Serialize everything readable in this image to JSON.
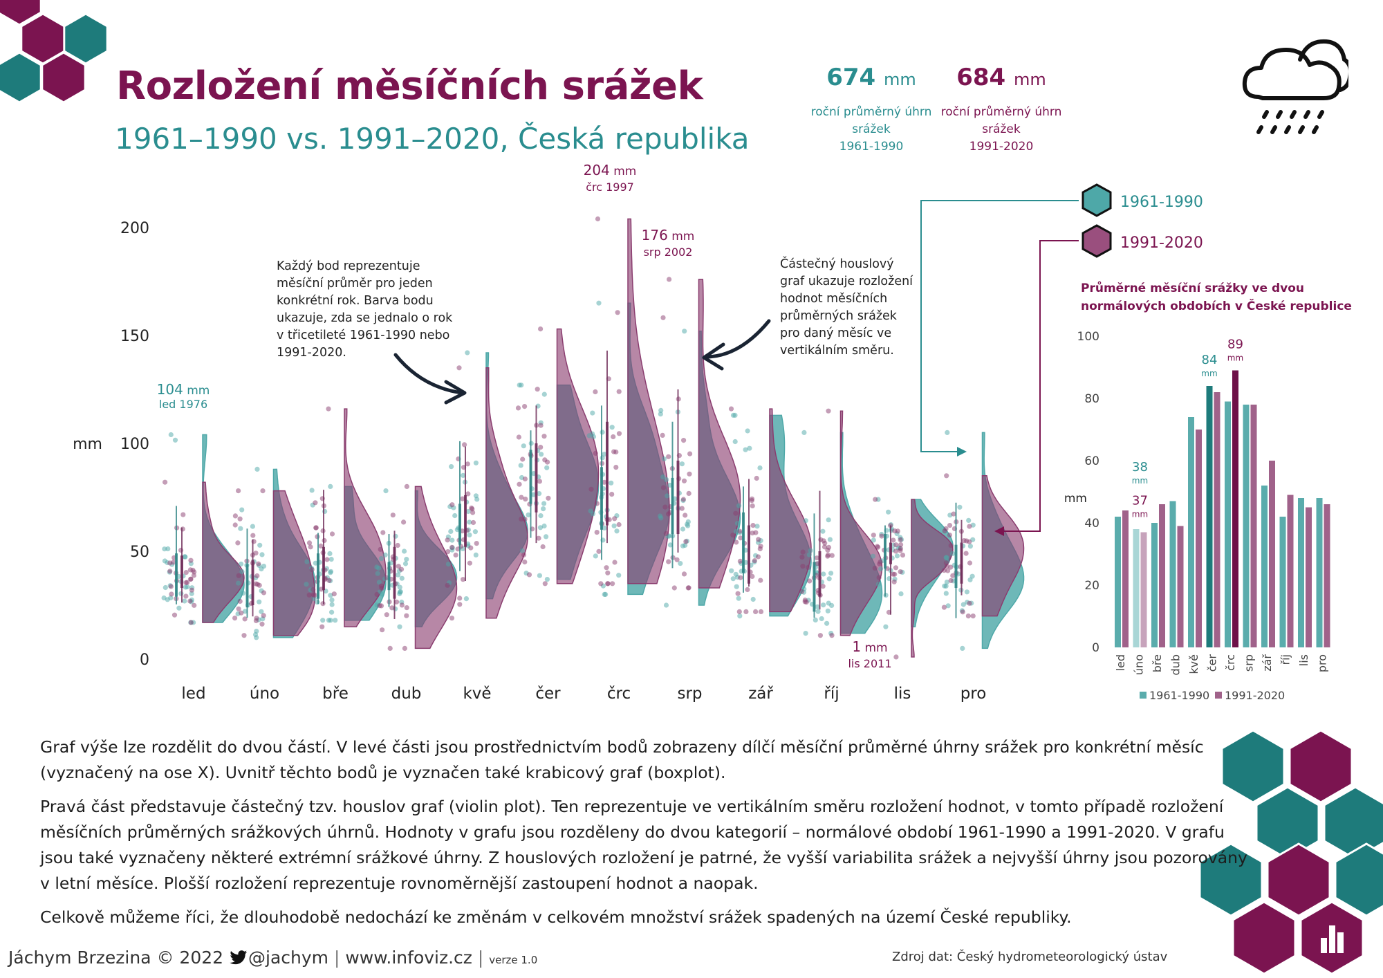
{
  "header": {
    "title": "Rozložení měsíčních srážek",
    "subtitle": "1961–1990 vs. 1991–2020, Česká republika"
  },
  "stats": [
    {
      "value": "674",
      "unit": "mm",
      "label": [
        "roční průměrný úhrn",
        "srážek",
        "1961-1990"
      ],
      "color": "#2a8d8f"
    },
    {
      "value": "684",
      "unit": "mm",
      "label": [
        "roční průměrný úhrn",
        "srážek",
        "1991-2020"
      ],
      "color": "#7b1450"
    }
  ],
  "legend": [
    {
      "label": "1961-1990",
      "color": "#4ea8a8"
    },
    {
      "label": "1991-2020",
      "color": "#9a4f7e"
    }
  ],
  "annotations": {
    "points_note": [
      "Každý bod reprezentuje",
      "měsíční průměr pro jeden",
      "konkrétní rok. Barva bodu",
      "ukazuje, zda se jednalo o rok",
      "v třicetileté 1961-1990 nebo",
      "1991-2020."
    ],
    "violin_note": [
      "Částečný houslový",
      "graf ukazuje rozložení",
      "hodnot měsíčních",
      "průměrných srážek",
      "pro daný měsíc ve",
      "vertikálním směru."
    ],
    "extremes": [
      {
        "value": "104",
        "unit": "mm",
        "label": "led 1976",
        "color": "#2a8d8f"
      },
      {
        "value": "204",
        "unit": "mm",
        "label": "črc 1997",
        "color": "#7b1450"
      },
      {
        "value": "176",
        "unit": "mm",
        "label": "srp 2002",
        "color": "#7b1450"
      },
      {
        "value": "1",
        "unit": "mm",
        "label": "lis 2011",
        "color": "#7b1450"
      }
    ]
  },
  "colors": {
    "teal": "#4ea8a8",
    "plum": "#8a3d6f",
    "dark_plum": "#7b1450",
    "dark_teal": "#1e7b7b"
  },
  "chart_data": [
    {
      "type": "violin",
      "ylabel": "mm",
      "ylim": [
        0,
        210
      ],
      "yticks": [
        0,
        50,
        100,
        150,
        200
      ],
      "categories": [
        "led",
        "úno",
        "bře",
        "dub",
        "kvě",
        "čer",
        "črc",
        "srp",
        "zář",
        "říj",
        "lis",
        "pro"
      ],
      "series": [
        {
          "name": "1961-1990",
          "median": [
            38,
            33,
            37,
            38,
            60,
            85,
            70,
            68,
            47,
            30,
            50,
            40
          ],
          "q1": [
            29,
            24,
            28,
            32,
            53,
            72,
            60,
            58,
            40,
            22,
            42,
            33
          ],
          "q3": [
            49,
            44,
            49,
            45,
            72,
            97,
            89,
            84,
            68,
            45,
            58,
            53
          ],
          "min": [
            17,
            10,
            18,
            15,
            28,
            37,
            30,
            25,
            20,
            12,
            15,
            5
          ],
          "max": [
            104,
            88,
            80,
            78,
            142,
            127,
            165,
            152,
            113,
            105,
            74,
            105
          ]
        },
        {
          "name": "1991-2020",
          "median": [
            40,
            33,
            41,
            39,
            62,
            82,
            82,
            74,
            51,
            41,
            50,
            44
          ],
          "q1": [
            33,
            25,
            32,
            28,
            52,
            68,
            62,
            58,
            35,
            29,
            44,
            35
          ],
          "q3": [
            48,
            46,
            52,
            52,
            76,
            100,
            110,
            92,
            62,
            50,
            54,
            54
          ],
          "min": [
            17,
            11,
            15,
            5,
            19,
            35,
            35,
            33,
            22,
            11,
            1,
            20
          ],
          "max": [
            82,
            78,
            116,
            80,
            135,
            153,
            204,
            176,
            116,
            115,
            74,
            85
          ]
        }
      ]
    },
    {
      "type": "bar",
      "title": "Průměrné měsíční srážky ve dvou normálových obdobích v České republice",
      "ylabel": "mm",
      "ylim": [
        0,
        100
      ],
      "yticks": [
        0,
        20,
        40,
        60,
        80,
        100
      ],
      "categories": [
        "led",
        "úno",
        "bře",
        "dub",
        "kvě",
        "čer",
        "črc",
        "srp",
        "zář",
        "říj",
        "lis",
        "pro"
      ],
      "series": [
        {
          "name": "1961-1990",
          "values": [
            42,
            38,
            40,
            47,
            74,
            84,
            79,
            78,
            52,
            42,
            48,
            48
          ]
        },
        {
          "name": "1991-2020",
          "values": [
            44,
            37,
            46,
            39,
            70,
            82,
            89,
            78,
            60,
            49,
            45,
            46
          ]
        }
      ],
      "data_labels": [
        {
          "category": "úno",
          "series": "1961-1990",
          "text": "38",
          "unit": "mm"
        },
        {
          "category": "úno",
          "series": "1991-2020",
          "text": "37",
          "unit": "mm"
        },
        {
          "category": "čer",
          "series": "1961-1990",
          "text": "84",
          "unit": "mm"
        },
        {
          "category": "črc",
          "series": "1991-2020",
          "text": "89",
          "unit": "mm"
        }
      ]
    }
  ],
  "body_text": [
    "Graf výše lze rozdělit do dvou částí. V levé části jsou prostřednictvím bodů zobrazeny dílčí měsíční průměrné úhrny srážek pro konkrétní měsíc (vyznačený na ose X). Uvnitř těchto bodů je vyznačen také krabicový graf (boxplot).",
    "Pravá část představuje částečný tzv. houslov graf (violin plot). Ten reprezentuje ve vertikálním směru rozložení hodnot, v tomto případě rozložení měsíčních průměrných srážkových úhrnů. Hodnoty v grafu jsou rozděleny do dvou kategorií – normálové období 1961-1990 a 1991-2020. V grafu jsou také vyznačeny některé extrémní srážkové úhrny. Z houslových rozložení je patrné, že vyšší variabilita srážek a nejvyšší úhrny jsou pozorovány v letní měsíce. Plošší rozložení reprezentuje rovnoměrnější zastoupení hodnot a naopak.",
    "Celkově můžeme říci, že dlouhodobě nedochází ke změnám v celkovém množství srážek spadených na území České republiky."
  ],
  "footer": {
    "author": "Jáchym Brzezina © 2022",
    "twitter": "@jachym",
    "website": "www.infoviz.cz",
    "version": "verze 1.0",
    "source": "Zdroj dat: Český hydrometeorologický ústav"
  },
  "icons": [
    "hexagon-decoration",
    "cloud-rain-icon",
    "twitter-bird-icon",
    "bar-chart-icon"
  ]
}
